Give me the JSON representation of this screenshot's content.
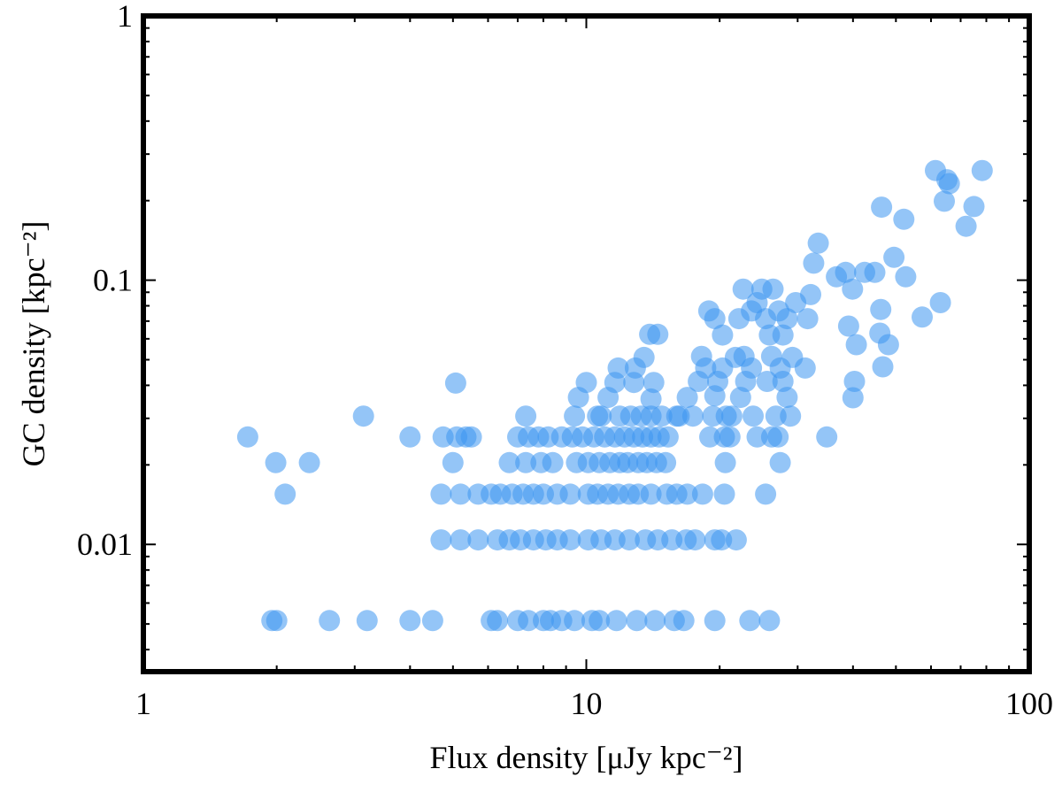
{
  "chart_data": {
    "type": "scatter",
    "title": "",
    "xlabel": "Flux density [μJy kpc⁻²]",
    "ylabel": "GC density [kpc⁻²]",
    "xscale": "log",
    "yscale": "log",
    "xlim": [
      1,
      100
    ],
    "ylim": [
      0.0033,
      1
    ],
    "xticks": [
      {
        "value": 1,
        "label": "1"
      },
      {
        "value": 10,
        "label": "10"
      },
      {
        "value": 100,
        "label": "100"
      }
    ],
    "yticks": [
      {
        "value": 0.01,
        "label": "0.01"
      },
      {
        "value": 0.1,
        "label": "0.1"
      },
      {
        "value": 1,
        "label": "1"
      }
    ],
    "grid": false,
    "marker_color": "#3d95f0",
    "marker_alpha": 0.55,
    "points": [
      [
        1.72,
        0.0255
      ],
      [
        1.99,
        0.0204
      ],
      [
        2.37,
        0.0204
      ],
      [
        2.09,
        0.0155
      ],
      [
        3.14,
        0.0306
      ],
      [
        4.0,
        0.0255
      ],
      [
        5.07,
        0.0408
      ],
      [
        5.0,
        0.0204
      ],
      [
        4.75,
        0.0255
      ],
      [
        5.1,
        0.0255
      ],
      [
        5.35,
        0.0255
      ],
      [
        5.5,
        0.0255
      ],
      [
        7.0,
        0.0255
      ],
      [
        7.4,
        0.0255
      ],
      [
        7.8,
        0.0255
      ],
      [
        8.2,
        0.0255
      ],
      [
        8.8,
        0.0255
      ],
      [
        9.3,
        0.0255
      ],
      [
        9.8,
        0.0255
      ],
      [
        10.4,
        0.0255
      ],
      [
        11.0,
        0.0255
      ],
      [
        11.6,
        0.0255
      ],
      [
        12.2,
        0.0255
      ],
      [
        12.8,
        0.0255
      ],
      [
        13.4,
        0.0255
      ],
      [
        14.0,
        0.0255
      ],
      [
        14.6,
        0.0255
      ],
      [
        15.3,
        0.0255
      ],
      [
        7.3,
        0.0306
      ],
      [
        10.8,
        0.0306
      ],
      [
        11.9,
        0.0306
      ],
      [
        12.6,
        0.0306
      ],
      [
        13.3,
        0.0306
      ],
      [
        14.0,
        0.0306
      ],
      [
        14.8,
        0.0306
      ],
      [
        16.0,
        0.0306
      ],
      [
        6.7,
        0.0204
      ],
      [
        7.3,
        0.0204
      ],
      [
        7.9,
        0.0204
      ],
      [
        8.4,
        0.0204
      ],
      [
        9.5,
        0.0204
      ],
      [
        10.1,
        0.0204
      ],
      [
        10.7,
        0.0204
      ],
      [
        11.3,
        0.0204
      ],
      [
        11.9,
        0.0204
      ],
      [
        12.4,
        0.0204
      ],
      [
        13.1,
        0.0204
      ],
      [
        13.7,
        0.0204
      ],
      [
        14.4,
        0.0204
      ],
      [
        15.1,
        0.0204
      ],
      [
        4.7,
        0.0155
      ],
      [
        5.2,
        0.0155
      ],
      [
        5.7,
        0.0155
      ],
      [
        6.1,
        0.0155
      ],
      [
        6.4,
        0.0155
      ],
      [
        6.8,
        0.0155
      ],
      [
        7.2,
        0.0155
      ],
      [
        7.6,
        0.0155
      ],
      [
        8.0,
        0.0155
      ],
      [
        8.6,
        0.0155
      ],
      [
        9.2,
        0.0155
      ],
      [
        10.1,
        0.0155
      ],
      [
        10.6,
        0.0155
      ],
      [
        11.2,
        0.0155
      ],
      [
        11.8,
        0.0155
      ],
      [
        12.5,
        0.0155
      ],
      [
        13.1,
        0.0155
      ],
      [
        14.0,
        0.0155
      ],
      [
        15.2,
        0.0155
      ],
      [
        16.0,
        0.0155
      ],
      [
        16.9,
        0.0155
      ],
      [
        18.3,
        0.0155
      ],
      [
        20.5,
        0.0155
      ],
      [
        25.4,
        0.0155
      ],
      [
        4.7,
        0.0104
      ],
      [
        5.2,
        0.0104
      ],
      [
        5.7,
        0.0104
      ],
      [
        6.3,
        0.0104
      ],
      [
        6.7,
        0.0104
      ],
      [
        7.1,
        0.0104
      ],
      [
        7.6,
        0.0104
      ],
      [
        8.1,
        0.0104
      ],
      [
        8.6,
        0.0104
      ],
      [
        9.2,
        0.0104
      ],
      [
        10.1,
        0.0104
      ],
      [
        10.8,
        0.0104
      ],
      [
        11.6,
        0.0104
      ],
      [
        12.5,
        0.0104
      ],
      [
        13.6,
        0.0104
      ],
      [
        14.5,
        0.0104
      ],
      [
        15.6,
        0.0104
      ],
      [
        16.8,
        0.0104
      ],
      [
        17.6,
        0.0104
      ],
      [
        19.5,
        0.0104
      ],
      [
        20.2,
        0.0104
      ],
      [
        21.8,
        0.0104
      ],
      [
        1.95,
        0.00515
      ],
      [
        2.0,
        0.00515
      ],
      [
        2.63,
        0.00515
      ],
      [
        3.2,
        0.00515
      ],
      [
        4.0,
        0.00515
      ],
      [
        4.5,
        0.00515
      ],
      [
        6.1,
        0.00515
      ],
      [
        6.3,
        0.00515
      ],
      [
        7.0,
        0.00515
      ],
      [
        7.4,
        0.00515
      ],
      [
        8.0,
        0.00515
      ],
      [
        8.3,
        0.00515
      ],
      [
        8.8,
        0.00515
      ],
      [
        9.4,
        0.00515
      ],
      [
        10.3,
        0.00515
      ],
      [
        10.7,
        0.00515
      ],
      [
        11.7,
        0.00515
      ],
      [
        13.0,
        0.00515
      ],
      [
        14.3,
        0.00515
      ],
      [
        15.8,
        0.00515
      ],
      [
        16.6,
        0.00515
      ],
      [
        19.5,
        0.00515
      ],
      [
        23.4,
        0.00515
      ],
      [
        25.9,
        0.00515
      ],
      [
        9.4,
        0.0306
      ],
      [
        9.6,
        0.036
      ],
      [
        10.0,
        0.041
      ],
      [
        10.6,
        0.0306
      ],
      [
        11.2,
        0.036
      ],
      [
        11.6,
        0.041
      ],
      [
        11.8,
        0.0465
      ],
      [
        12.8,
        0.041
      ],
      [
        12.9,
        0.0465
      ],
      [
        13.5,
        0.051
      ],
      [
        14.0,
        0.0355
      ],
      [
        14.2,
        0.041
      ],
      [
        14.5,
        0.0624
      ],
      [
        13.9,
        0.0624
      ],
      [
        16.2,
        0.0306
      ],
      [
        16.9,
        0.036
      ],
      [
        17.4,
        0.0306
      ],
      [
        17.9,
        0.0414
      ],
      [
        18.6,
        0.0465
      ],
      [
        18.2,
        0.0515
      ],
      [
        19.0,
        0.0255
      ],
      [
        19.3,
        0.0306
      ],
      [
        19.5,
        0.0365
      ],
      [
        19.8,
        0.0414
      ],
      [
        20.5,
        0.0255
      ],
      [
        20.7,
        0.0306
      ],
      [
        20.3,
        0.0465
      ],
      [
        21.3,
        0.0306
      ],
      [
        22.3,
        0.036
      ],
      [
        22.9,
        0.0414
      ],
      [
        22.7,
        0.0515
      ],
      [
        23.6,
        0.0465
      ],
      [
        23.8,
        0.0306
      ],
      [
        24.3,
        0.0255
      ],
      [
        25.6,
        0.0414
      ],
      [
        26.2,
        0.0515
      ],
      [
        26.8,
        0.0306
      ],
      [
        27.4,
        0.0204
      ],
      [
        27.8,
        0.0414
      ],
      [
        28.4,
        0.036
      ],
      [
        28.9,
        0.0306
      ],
      [
        27.4,
        0.0465
      ],
      [
        27.1,
        0.0255
      ],
      [
        26.2,
        0.0255
      ],
      [
        20.6,
        0.0204
      ],
      [
        21.1,
        0.0255
      ],
      [
        18.9,
        0.0765
      ],
      [
        19.5,
        0.0715
      ],
      [
        20.3,
        0.062
      ],
      [
        21.7,
        0.051
      ],
      [
        22.1,
        0.0715
      ],
      [
        22.6,
        0.0925
      ],
      [
        23.6,
        0.0765
      ],
      [
        24.3,
        0.0822
      ],
      [
        24.9,
        0.0925
      ],
      [
        25.4,
        0.0715
      ],
      [
        25.9,
        0.062
      ],
      [
        26.4,
        0.0925
      ],
      [
        27.2,
        0.0765
      ],
      [
        27.8,
        0.062
      ],
      [
        28.4,
        0.0715
      ],
      [
        29.2,
        0.051
      ],
      [
        29.7,
        0.0822
      ],
      [
        31.2,
        0.0465
      ],
      [
        31.6,
        0.0715
      ],
      [
        32.1,
        0.0882
      ],
      [
        32.6,
        0.116
      ],
      [
        33.4,
        0.138
      ],
      [
        34.9,
        0.0255
      ],
      [
        36.7,
        0.103
      ],
      [
        38.5,
        0.107
      ],
      [
        39.9,
        0.0925
      ],
      [
        39.1,
        0.067
      ],
      [
        40.7,
        0.057
      ],
      [
        40.3,
        0.0414
      ],
      [
        40.0,
        0.0359
      ],
      [
        42.5,
        0.107
      ],
      [
        44.8,
        0.107
      ],
      [
        46.2,
        0.0775
      ],
      [
        46.0,
        0.063
      ],
      [
        46.7,
        0.047
      ],
      [
        48.1,
        0.057
      ],
      [
        46.4,
        0.189
      ],
      [
        49.5,
        0.122
      ],
      [
        52.1,
        0.17
      ],
      [
        52.6,
        0.103
      ],
      [
        57.3,
        0.0725
      ],
      [
        61.4,
        0.26
      ],
      [
        63.0,
        0.0822
      ],
      [
        64.3,
        0.199
      ],
      [
        65.2,
        0.24
      ],
      [
        66.0,
        0.232
      ],
      [
        72.0,
        0.16
      ],
      [
        75.0,
        0.19
      ],
      [
        78.3,
        0.26
      ]
    ]
  }
}
